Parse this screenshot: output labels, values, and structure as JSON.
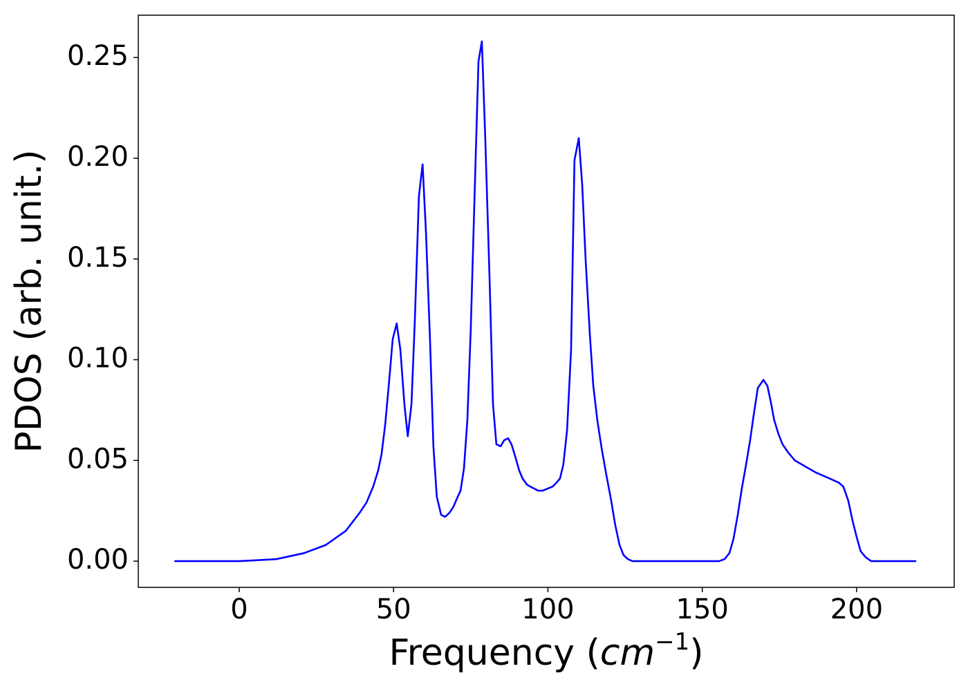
{
  "chart_data": {
    "type": "line",
    "xlabel": [
      "Frequency (",
      "cm",
      "−1",
      ")"
    ],
    "ylabel": "PDOS (arb. unit.)",
    "x": [
      -21,
      0,
      12,
      21,
      28,
      34.5,
      39,
      41.2,
      43.4,
      45,
      46.1,
      47.3,
      48.6,
      49.7,
      51,
      52.2,
      53.5,
      54.6,
      55.8,
      56.9,
      58.2,
      59.4,
      60.5,
      61.8,
      62.9,
      64,
      65.4,
      66.7,
      68.1,
      69.4,
      70.5,
      71.7,
      72.8,
      73.9,
      75,
      76.4,
      77.5,
      78.6,
      79.7,
      81.1,
      82.2,
      83.3,
      84.7,
      85.8,
      87.1,
      88.2,
      89.4,
      90.7,
      91.8,
      93.2,
      94.3,
      95.6,
      96.8,
      98.3,
      99.9,
      101.5,
      102.8,
      103.9,
      105,
      106.2,
      107.5,
      108.6,
      110,
      111.1,
      112.2,
      113.6,
      114.7,
      116,
      117.4,
      118.9,
      120.5,
      121.8,
      123.2,
      124.5,
      125.9,
      127.4,
      155.4,
      157.2,
      158.8,
      160.1,
      161.5,
      162.8,
      164.2,
      165.5,
      166.6,
      168,
      169.8,
      171.1,
      172.2,
      173.3,
      174.7,
      176,
      177.8,
      180,
      183.4,
      186.8,
      191.3,
      194.2,
      195.7,
      197.3,
      198.7,
      200,
      201.3,
      202.9,
      204.7,
      219.3
    ],
    "series": [
      {
        "color": "#0000ff",
        "values": [
          0,
          0,
          0.001,
          0.004,
          0.008,
          0.015,
          0.024,
          0.029,
          0.037,
          0.045,
          0.053,
          0.068,
          0.09,
          0.11,
          0.118,
          0.105,
          0.078,
          0.062,
          0.078,
          0.12,
          0.181,
          0.197,
          0.163,
          0.11,
          0.057,
          0.032,
          0.023,
          0.022,
          0.024,
          0.027,
          0.031,
          0.035,
          0.046,
          0.07,
          0.115,
          0.19,
          0.248,
          0.258,
          0.21,
          0.14,
          0.078,
          0.058,
          0.057,
          0.06,
          0.061,
          0.058,
          0.052,
          0.045,
          0.041,
          0.038,
          0.037,
          0.036,
          0.035,
          0.035,
          0.036,
          0.037,
          0.039,
          0.041,
          0.048,
          0.065,
          0.105,
          0.199,
          0.21,
          0.187,
          0.15,
          0.112,
          0.087,
          0.07,
          0.056,
          0.043,
          0.03,
          0.018,
          0.008,
          0.003,
          0.001,
          0,
          0,
          0.001,
          0.004,
          0.011,
          0.023,
          0.036,
          0.048,
          0.06,
          0.072,
          0.086,
          0.09,
          0.087,
          0.079,
          0.07,
          0.063,
          0.058,
          0.054,
          0.05,
          0.047,
          0.044,
          0.041,
          0.039,
          0.037,
          0.03,
          0.02,
          0.012,
          0.005,
          0.002,
          0,
          0
        ]
      }
    ],
    "xlim": [
      -32.7,
      231.6
    ],
    "xticks": [
      0,
      50,
      100,
      150,
      200
    ],
    "ylim": [
      -0.013,
      0.271
    ],
    "yticks": [
      {
        "value": 0,
        "label": "0.00"
      },
      {
        "value": 0.05,
        "label": "0.05"
      },
      {
        "value": 0.1,
        "label": "0.10"
      },
      {
        "value": 0.15,
        "label": "0.15"
      },
      {
        "value": 0.2,
        "label": "0.20"
      },
      {
        "value": 0.25,
        "label": "0.25"
      }
    ],
    "grid": false
  }
}
